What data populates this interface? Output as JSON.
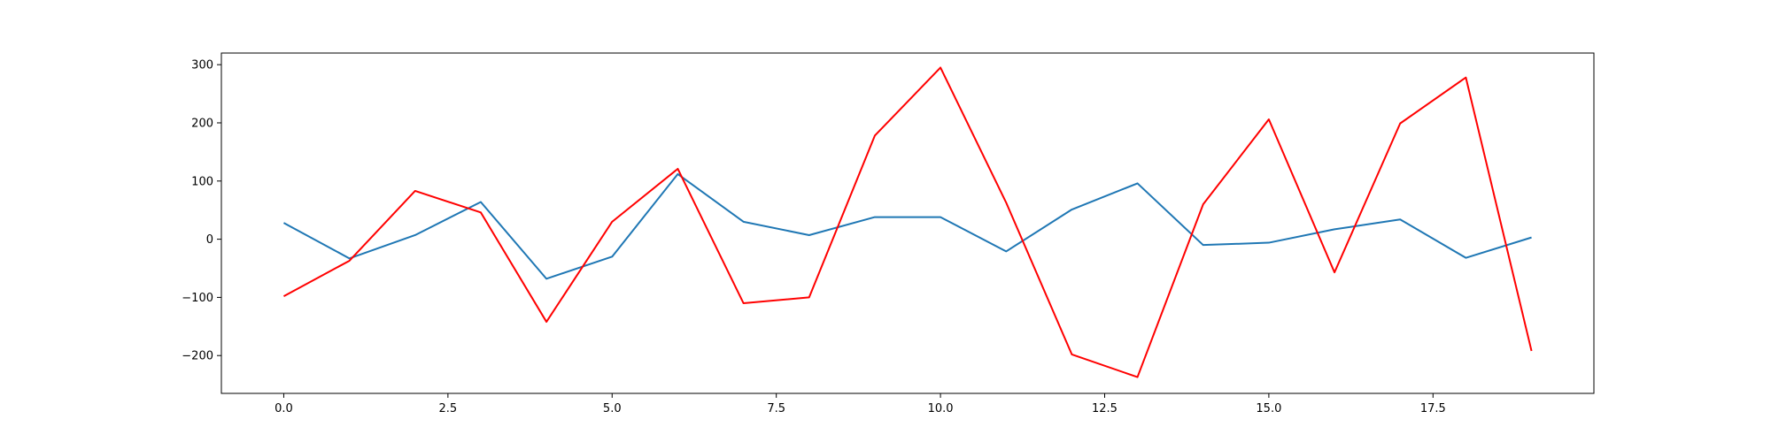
{
  "chart_data": {
    "type": "line",
    "title": "",
    "xlabel": "",
    "ylabel": "",
    "xlim": [
      -0.95,
      19.95
    ],
    "ylim": [
      -265,
      320
    ],
    "grid": false,
    "x": [
      0,
      1,
      2,
      3,
      4,
      5,
      6,
      7,
      8,
      9,
      10,
      11,
      12,
      13,
      14,
      15,
      16,
      17,
      18,
      19
    ],
    "xticks": [
      0.0,
      2.5,
      5.0,
      7.5,
      10.0,
      12.5,
      15.0,
      17.5
    ],
    "xtick_labels": [
      "0.0",
      "2.5",
      "5.0",
      "7.5",
      "10.0",
      "12.5",
      "15.0",
      "17.5"
    ],
    "yticks": [
      -200,
      -100,
      0,
      100,
      200,
      300
    ],
    "ytick_labels": [
      "−200",
      "−100",
      "0",
      "100",
      "200",
      "300"
    ],
    "series": [
      {
        "color": "#1f77b4",
        "values": [
          28,
          -33,
          7,
          64,
          -68,
          -30,
          112,
          30,
          7,
          38,
          38,
          -21,
          51,
          96,
          -10,
          -6,
          17,
          34,
          -32,
          3
        ]
      },
      {
        "color": "#ff0000",
        "values": [
          -98,
          -37,
          83,
          46,
          -142,
          30,
          121,
          -110,
          -100,
          178,
          295,
          63,
          -198,
          -237,
          60,
          206,
          -57,
          199,
          278,
          -192
        ]
      }
    ]
  }
}
